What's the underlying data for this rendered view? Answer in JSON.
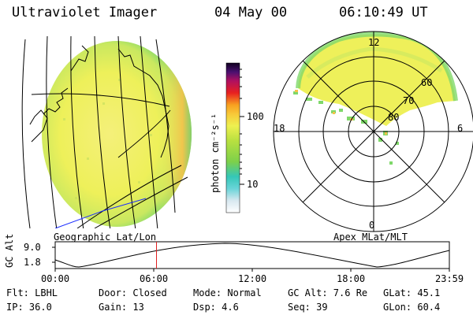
{
  "header": {
    "title": "Ultraviolet Imager",
    "date": "04 May 00",
    "time": "06:10:49 UT"
  },
  "colorbar": {
    "unit_label": "photon cm⁻²s⁻¹",
    "tick_100": "100",
    "tick_10": "10"
  },
  "panels": {
    "left_label": "Geographic Lat/Lon",
    "right_label": "Apex MLat/MLT"
  },
  "polar": {
    "mlt_12": "12",
    "mlt_18": "18",
    "mlt_6": "6",
    "mlt_0": "0",
    "lat_60": "60",
    "lat_70": "70",
    "lat_80": "80"
  },
  "orbit_plot": {
    "ylabel": "GC Alt",
    "y_top": "9.0",
    "y_bottom": "1.8",
    "x_ticks": [
      "00:00",
      "06:00",
      "12:00",
      "18:00",
      "23:59"
    ],
    "current_time_fraction": 0.257
  },
  "info": {
    "flt": "Flt: LBHL",
    "ip": "IP: 36.0",
    "door": "Door: Closed",
    "gain": "Gain: 13",
    "mode": "Mode: Normal",
    "dsp": "Dsp:     4.6",
    "gc_alt": "GC Alt: 7.6 Re",
    "seq": "Seq: 39",
    "glat": "GLat:  45.1",
    "glon": "GLon:  60.4"
  }
}
